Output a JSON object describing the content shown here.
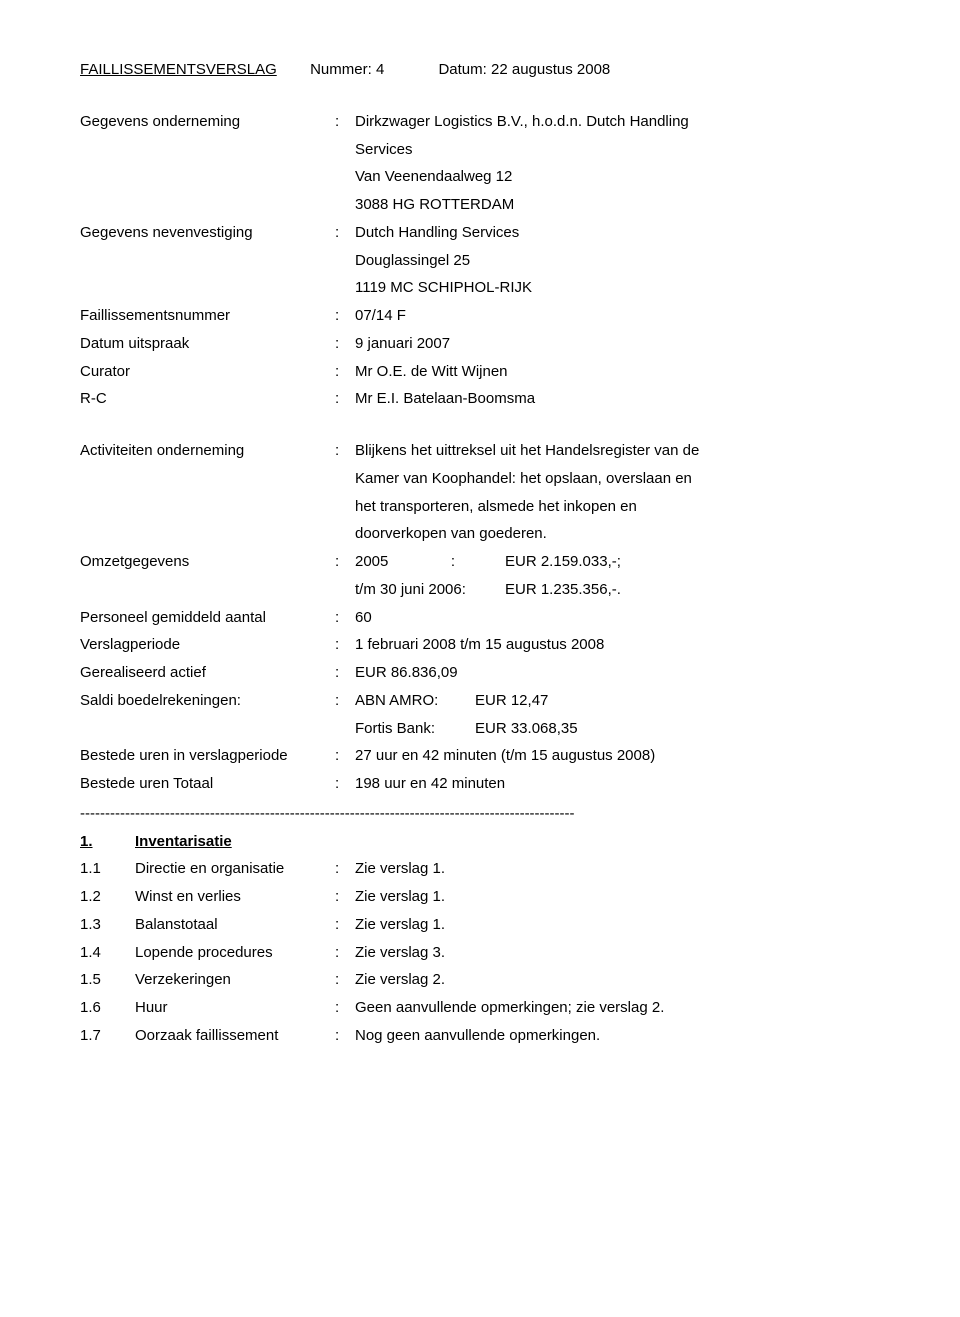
{
  "header": {
    "title": "FAILLISSEMENTSVERSLAG",
    "nummer_label": "Nummer:",
    "nummer_value": "4",
    "datum_label": "Datum:",
    "datum_value": "22 augustus 2008"
  },
  "top": {
    "gegevens_onderneming_label": "Gegevens onderneming",
    "gegevens_onderneming_l1": "Dirkzwager Logistics B.V., h.o.d.n. Dutch Handling",
    "gegevens_onderneming_l2": "Services",
    "gegevens_onderneming_l3": "Van Veenendaalweg 12",
    "gegevens_onderneming_l4": "3088 HG  ROTTERDAM",
    "gegevens_nv_label": "Gegevens nevenvestiging",
    "gegevens_nv_l1": "Dutch Handling Services",
    "gegevens_nv_l2": "Douglassingel 25",
    "gegevens_nv_l3": "1119 MC  SCHIPHOL-RIJK",
    "failnr_label": "Faillissementsnummer",
    "failnr_value": "07/14 F",
    "datum_uitspraak_label": "Datum uitspraak",
    "datum_uitspraak_value": "9 januari 2007",
    "curator_label": "Curator",
    "curator_value": "Mr O.E. de Witt Wijnen",
    "rc_label": "R-C",
    "rc_value": "Mr E.I. Batelaan-Boomsma"
  },
  "mid": {
    "activiteiten_label": "Activiteiten onderneming",
    "activiteiten_l1": "Blijkens het uittreksel uit het Handelsregister van de",
    "activiteiten_l2": "Kamer van Koophandel: het opslaan, overslaan en",
    "activiteiten_l3": "het transporteren, alsmede het inkopen en",
    "activiteiten_l4": "doorverkopen van goederen.",
    "omzet_label": "Omzetgegevens",
    "omzet_y1_lbl": "2005",
    "omzet_y1_colon": ":",
    "omzet_y1_val": "EUR 2.159.033,-;",
    "omzet_y2_lbl": "t/m 30 juni 2006:",
    "omzet_y2_val": "EUR 1.235.356,-.",
    "personeel_label": "Personeel gemiddeld aantal",
    "personeel_value": "60",
    "verslagperiode_label": "Verslagperiode",
    "verslagperiode_value": "1 februari 2008 t/m 15 augustus 2008",
    "gerealiseerd_label": "Gerealiseerd actief",
    "gerealiseerd_value": "EUR 86.836,09",
    "saldi_label": "Saldi boedelrekeningen:",
    "saldi_c1a": "ABN AMRO:",
    "saldi_c2a": "EUR 12,47",
    "saldi_c1b": "Fortis Bank:",
    "saldi_c2b": "EUR 33.068,35",
    "bup_label": "Bestede uren in verslagperiode",
    "bup_value": "27 uur en 42 minuten (t/m 15 augustus 2008)",
    "but_label": "Bestede uren Totaal",
    "but_value": "198 uur en 42 minuten"
  },
  "dashes": "---------------------------------------------------------------------------------------------------",
  "section1": {
    "num": "1.",
    "title": "Inventarisatie",
    "items": [
      {
        "idx": "1.1",
        "label": "Directie en organisatie",
        "value": "Zie verslag 1."
      },
      {
        "idx": "1.2",
        "label": "Winst en verlies",
        "value": "Zie verslag 1."
      },
      {
        "idx": "1.3",
        "label": "Balanstotaal",
        "value": "Zie verslag 1."
      },
      {
        "idx": "1.4",
        "label": "Lopende procedures",
        "value": "Zie verslag 3."
      },
      {
        "idx": "1.5",
        "label": "Verzekeringen",
        "value": "Zie verslag 2."
      },
      {
        "idx": "1.6",
        "label": "Huur",
        "value": "Geen aanvullende opmerkingen; zie verslag 2."
      },
      {
        "idx": "1.7",
        "label": "Oorzaak faillissement",
        "value": "Nog geen aanvullende opmerkingen."
      }
    ]
  }
}
